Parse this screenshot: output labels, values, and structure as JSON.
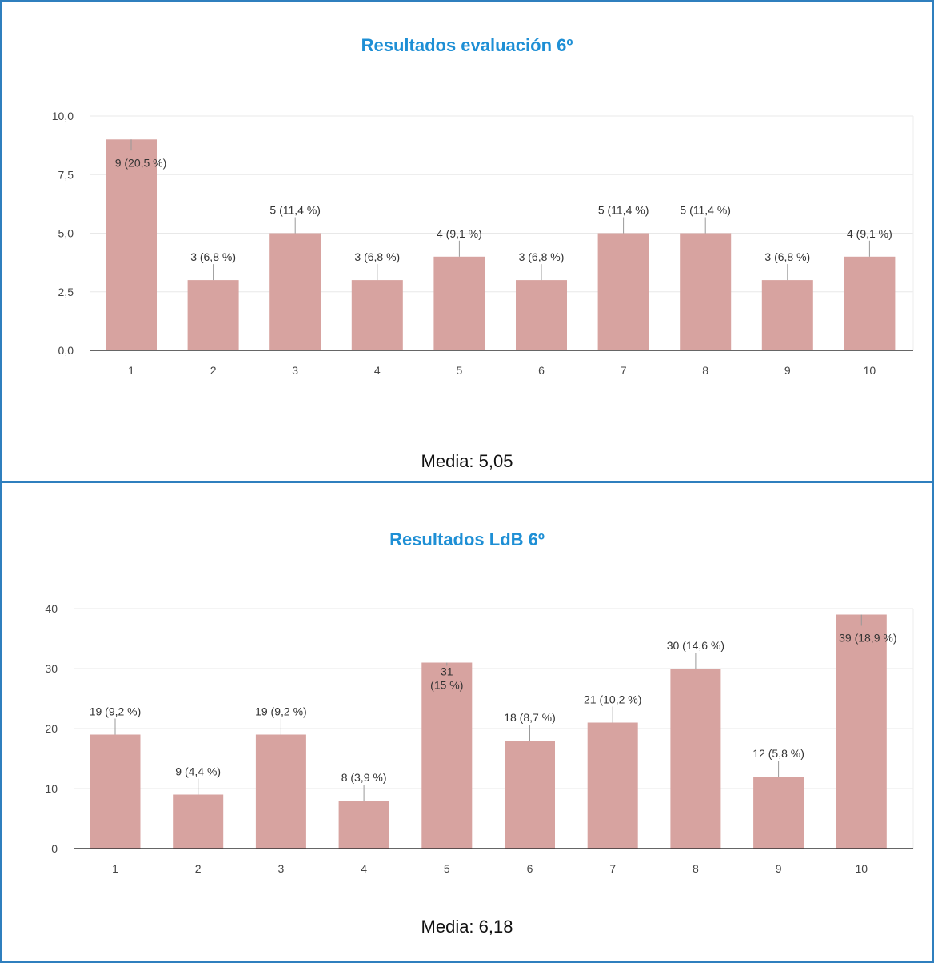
{
  "charts": [
    {
      "title": "Resultados evaluación 6º",
      "media": "Media: 5,05",
      "chart_data": {
        "type": "bar",
        "categories": [
          "1",
          "2",
          "3",
          "4",
          "5",
          "6",
          "7",
          "8",
          "9",
          "10"
        ],
        "values": [
          9,
          3,
          5,
          3,
          4,
          3,
          5,
          5,
          3,
          4
        ],
        "data_labels": [
          "9 (20,5 %)",
          "3 (6,8 %)",
          "5 (11,4 %)",
          "3 (6,8 %)",
          "4 (9,1 %)",
          "3 (6,8 %)",
          "5 (11,4 %)",
          "5 (11,4 %)",
          "3 (6,8 %)",
          "4 (9,1 %)"
        ],
        "y_ticks": [
          0,
          2.5,
          5,
          7.5,
          10
        ],
        "y_tick_labels": [
          "0,0",
          "2,5",
          "5,0",
          "7,5",
          "10,0"
        ],
        "ylim": [
          0,
          10
        ],
        "grid": true,
        "bar_color": "#d7a3a0"
      }
    },
    {
      "title": "Resultados LdB 6º",
      "media": "Media: 6,18",
      "chart_data": {
        "type": "bar",
        "categories": [
          "1",
          "2",
          "3",
          "4",
          "5",
          "6",
          "7",
          "8",
          "9",
          "10"
        ],
        "values": [
          19,
          9,
          19,
          8,
          31,
          18,
          21,
          30,
          12,
          39
        ],
        "data_labels": [
          "19 (9,2 %)",
          "9 (4,4 %)",
          "19 (9,2 %)",
          "8 (3,9 %)",
          "31 (15 %)",
          "18 (8,7 %)",
          "21 (10,2 %)",
          "30 (14,6 %)",
          "12 (5,8 %)",
          "39 (18,9 %)"
        ],
        "y_ticks": [
          0,
          10,
          20,
          30,
          40
        ],
        "y_tick_labels": [
          "0",
          "10",
          "20",
          "30",
          "40"
        ],
        "ylim": [
          0,
          40
        ],
        "grid": true,
        "bar_color": "#d7a3a0"
      }
    }
  ]
}
